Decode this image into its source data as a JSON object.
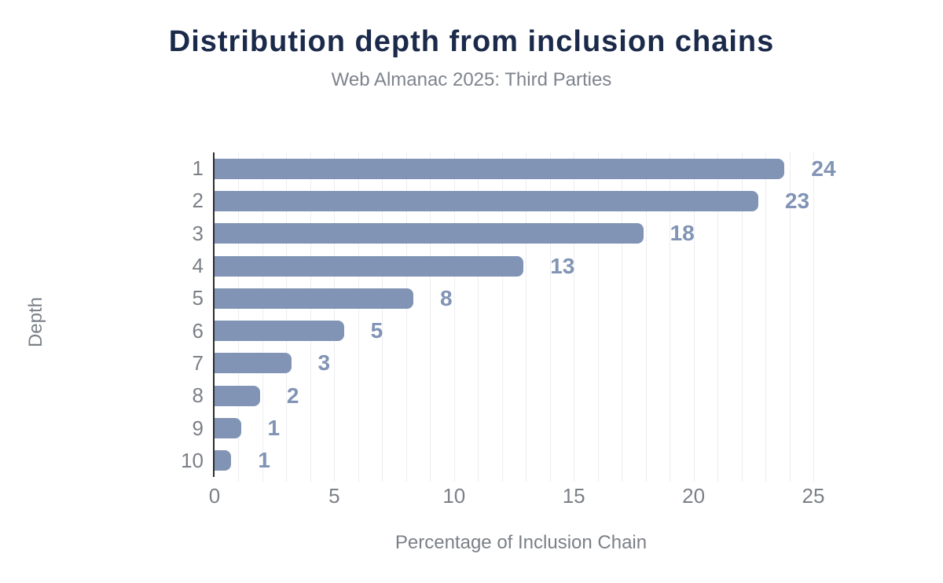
{
  "chart_data": {
    "type": "bar",
    "orientation": "horizontal",
    "title": "Distribution depth from inclusion chains",
    "subtitle": "Web Almanac 2025: Third Parties",
    "xlabel": "Percentage of Inclusion Chain",
    "ylabel": "Depth",
    "categories": [
      "1",
      "2",
      "3",
      "4",
      "5",
      "6",
      "7",
      "8",
      "9",
      "10"
    ],
    "values": [
      24,
      23,
      18,
      13,
      8,
      5,
      3,
      2,
      1,
      1
    ],
    "bar_lengths_pct": [
      23.8,
      22.7,
      17.9,
      12.9,
      8.3,
      5.4,
      3.2,
      1.9,
      1.1,
      0.7
    ],
    "x_ticks": [
      0,
      5,
      10,
      15,
      20,
      25
    ],
    "xlim": [
      0,
      25.6
    ],
    "grid": "vertical minor gridlines every 1 unit",
    "legend": "none",
    "colors": {
      "bar": "#8194b5",
      "value_label": "#8194b5",
      "title": "#1b2a4a",
      "subtitle": "#7e838d",
      "axis_text": "#7b8087",
      "gridline": "#ededf1",
      "axis_line": "#2e2e31",
      "background": "#ffffff"
    }
  }
}
